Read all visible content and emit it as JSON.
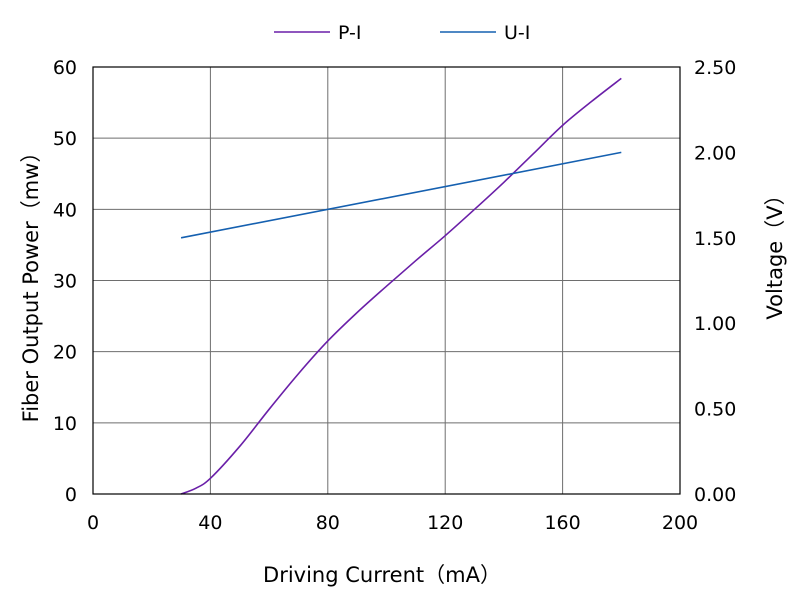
{
  "chart_data": {
    "type": "line",
    "xlabel": "Driving Current（mA）",
    "ylabel_left": "Fiber Output Power（mw）",
    "ylabel_right": "Voltage（V）",
    "xlim": [
      0,
      200
    ],
    "ylim_left": [
      0,
      60
    ],
    "ylim_right": [
      0,
      2.5
    ],
    "x_ticks": [
      0,
      40,
      80,
      120,
      160,
      200
    ],
    "x_tick_labels": [
      "0",
      "40",
      "80",
      "120",
      "160",
      "200"
    ],
    "y_left_ticks": [
      0,
      10,
      20,
      30,
      40,
      50,
      60
    ],
    "y_left_tick_labels": [
      "0",
      "10",
      "20",
      "30",
      "40",
      "50",
      "60"
    ],
    "y_right_ticks": [
      0,
      0.5,
      1.0,
      1.5,
      2.0,
      2.5
    ],
    "y_right_tick_labels": [
      "0.00",
      "0.50",
      "1.00",
      "1.50",
      "2.00",
      "2.50"
    ],
    "grid": true,
    "legend_position": "top-center",
    "series": [
      {
        "name": "P-I",
        "axis": "left",
        "color": "#6a1fa8",
        "x": [
          30,
          35,
          40,
          50,
          60,
          70,
          80,
          90,
          100,
          110,
          120,
          130,
          140,
          150,
          160,
          170,
          180
        ],
        "y": [
          0,
          0.8,
          2.2,
          6.7,
          11.9,
          16.9,
          21.5,
          25.5,
          29.2,
          32.8,
          36.3,
          40,
          43.8,
          47.8,
          51.8,
          55.2,
          58.4
        ]
      },
      {
        "name": "U-I",
        "axis": "right",
        "color": "#1560b0",
        "x": [
          30,
          180
        ],
        "y": [
          1.5,
          2.0
        ]
      }
    ]
  }
}
